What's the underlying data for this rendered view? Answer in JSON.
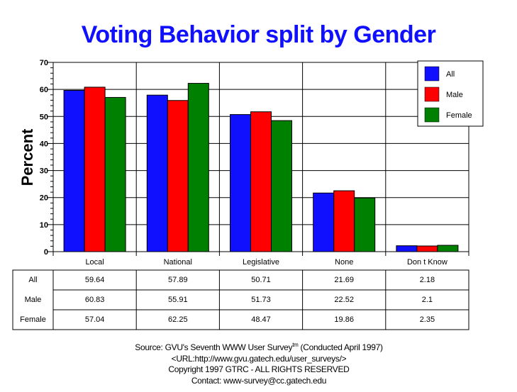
{
  "chart_data": {
    "type": "bar",
    "title": "Voting Behavior split by Gender",
    "xlabel": "",
    "ylabel": "Percent",
    "ylim": [
      0,
      70
    ],
    "yticks": [
      0,
      10,
      20,
      30,
      40,
      50,
      60,
      70
    ],
    "grid": true,
    "legend_position": "top-right",
    "categories": [
      "Local",
      "National",
      "Legislative",
      "None",
      "Don t Know"
    ],
    "series": [
      {
        "name": "All",
        "color": "#1010ff",
        "values": [
          59.64,
          57.89,
          50.71,
          21.69,
          2.18
        ]
      },
      {
        "name": "Male",
        "color": "#ff0000",
        "values": [
          60.83,
          55.91,
          51.73,
          22.52,
          2.1
        ]
      },
      {
        "name": "Female",
        "color": "#008000",
        "values": [
          57.04,
          62.25,
          48.47,
          19.86,
          2.35
        ]
      }
    ],
    "table": {
      "rows": [
        {
          "label": "All",
          "cells": [
            "59.64",
            "57.89",
            "50.71",
            "21.69",
            "2.18"
          ]
        },
        {
          "label": "Male",
          "cells": [
            "60.83",
            "55.91",
            "51.73",
            "22.52",
            "2.1"
          ]
        },
        {
          "label": "Female",
          "cells": [
            "57.04",
            "62.25",
            "48.47",
            "19.86",
            "2.35"
          ]
        }
      ]
    }
  },
  "footer": {
    "source_prefix": "Source: GVU's Seventh WWW User Survey",
    "source_sup": "tm",
    "source_suffix": " (Conducted April 1997)",
    "url": "<URL:http://www.gvu.gatech.edu/user_surveys/>",
    "copyright": "Copyright 1997 GTRC - ALL RIGHTS RESERVED",
    "contact": "Contact: www-survey@cc.gatech.edu"
  }
}
